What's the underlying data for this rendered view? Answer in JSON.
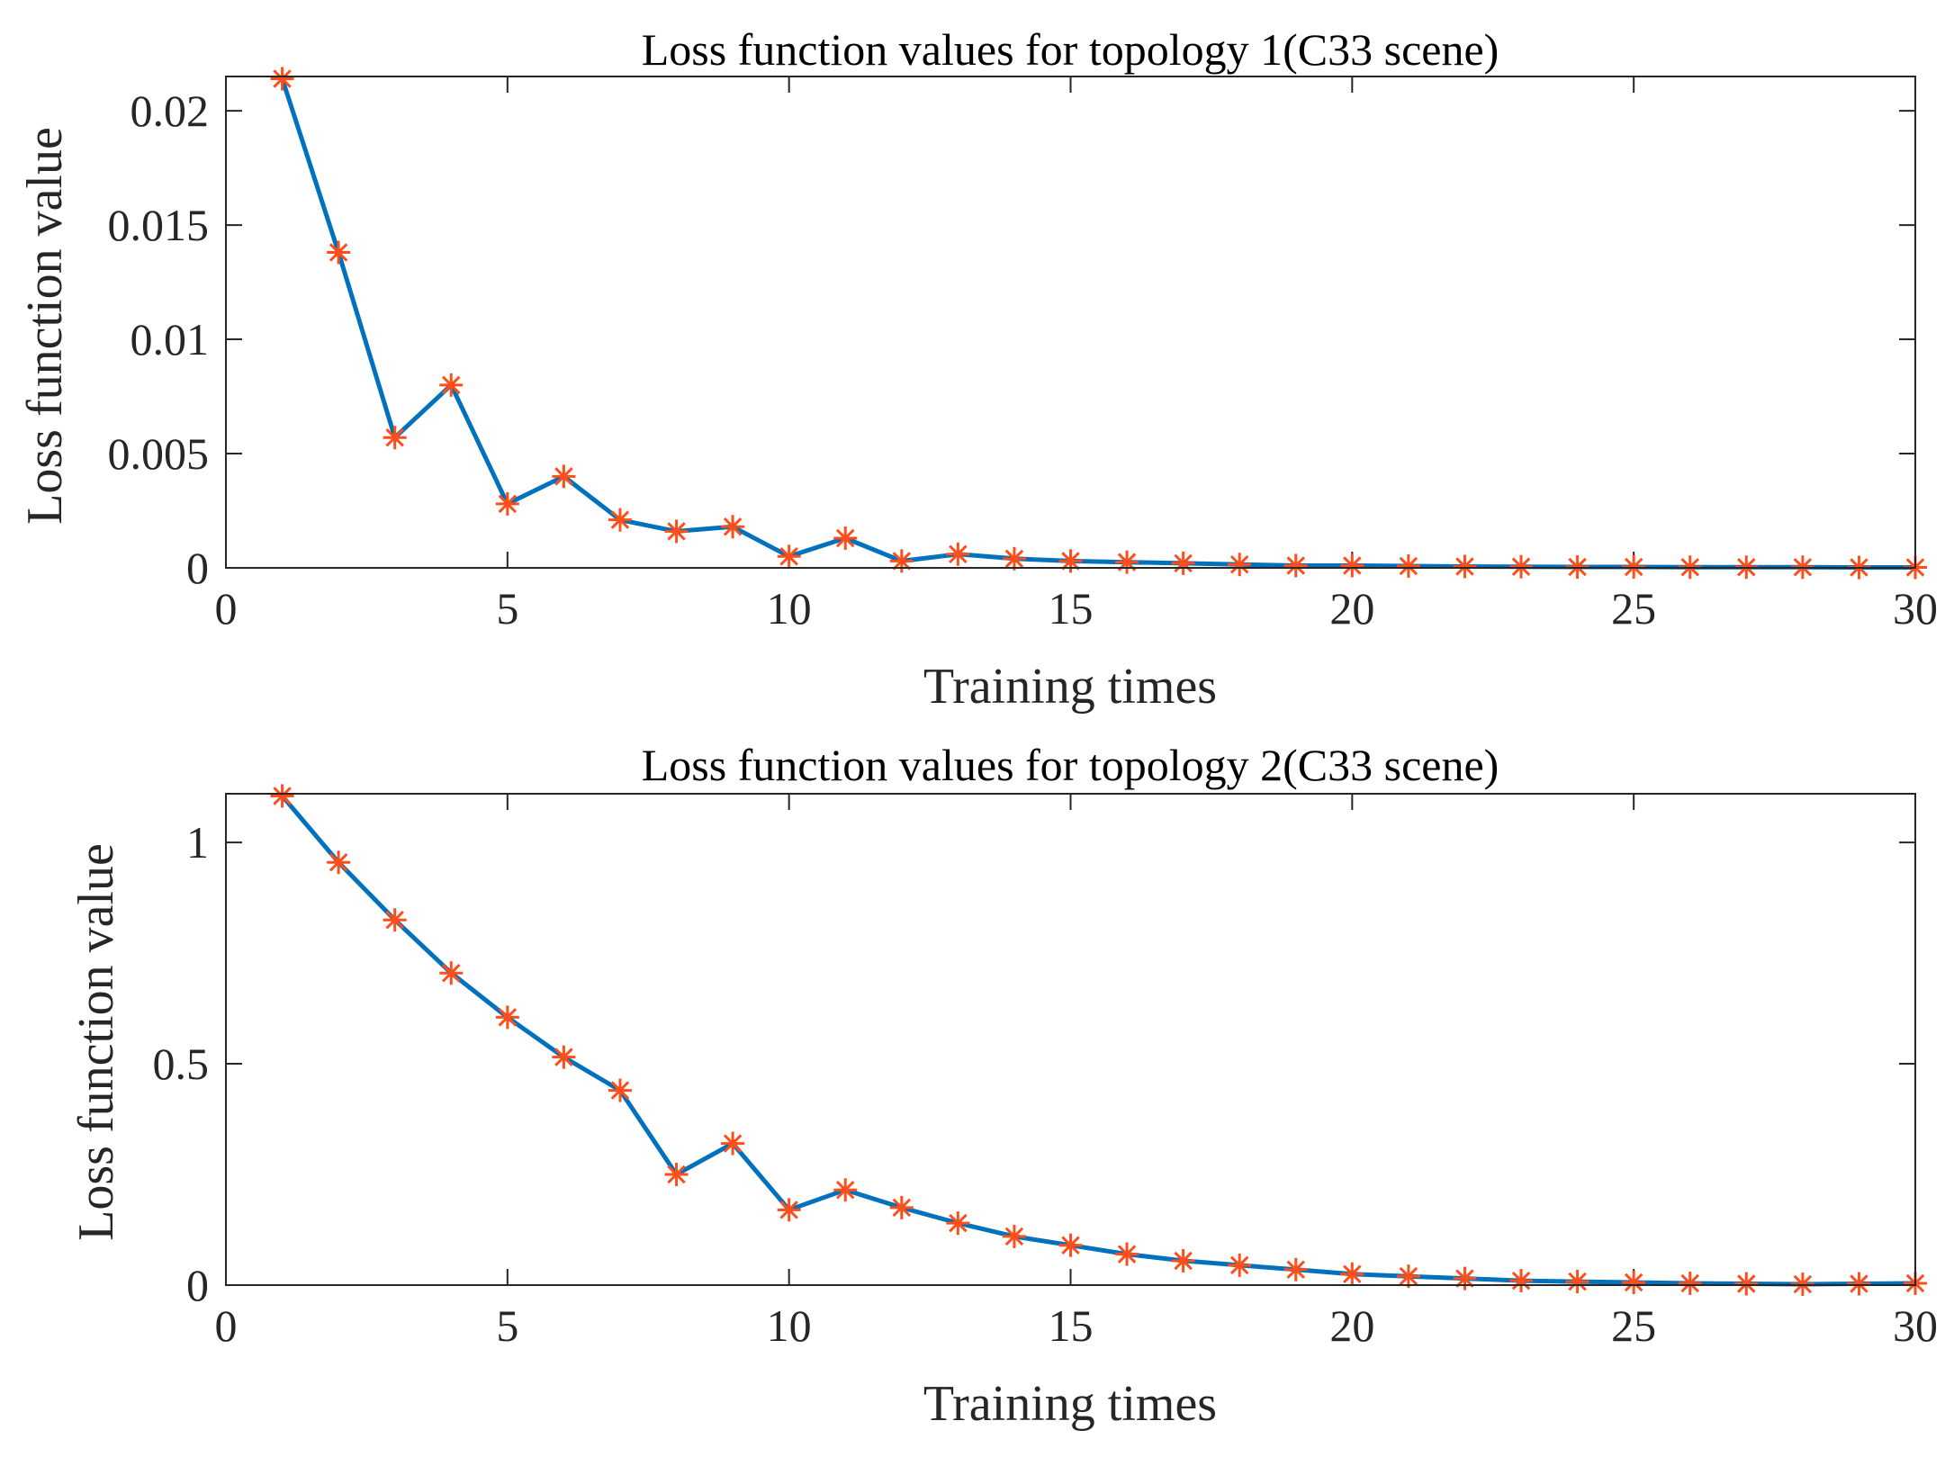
{
  "chart_data": [
    {
      "type": "line",
      "title": "Loss function values for topology 1(C33 scene)",
      "xlabel": "Training times",
      "ylabel": "Loss function value",
      "xlim": [
        0,
        30
      ],
      "ylim": [
        0,
        0.0215
      ],
      "xticks": [
        0,
        5,
        10,
        15,
        20,
        25,
        30
      ],
      "xtick_labels": [
        "0",
        "5",
        "10",
        "15",
        "20",
        "25",
        "30"
      ],
      "yticks": [
        0,
        0.005,
        0.01,
        0.015,
        0.02
      ],
      "ytick_labels": [
        "0",
        "0.005",
        "0.01",
        "0.015",
        "0.02"
      ],
      "grid": false,
      "line_color": "#0072BD",
      "marker_color": "#FF4E1A",
      "marker": "asterisk",
      "x": [
        1,
        2,
        3,
        4,
        5,
        6,
        7,
        8,
        9,
        10,
        11,
        12,
        13,
        14,
        15,
        16,
        17,
        18,
        19,
        20,
        21,
        22,
        23,
        24,
        25,
        26,
        27,
        28,
        29,
        30
      ],
      "values": [
        0.0214,
        0.0138,
        0.0057,
        0.008,
        0.0028,
        0.004,
        0.0021,
        0.0016,
        0.0018,
        0.0005,
        0.0013,
        0.0003,
        0.0006,
        0.0004,
        0.0003,
        0.00025,
        0.0002,
        0.00015,
        0.0001,
        0.0001,
        8e-05,
        6e-05,
        5e-05,
        4e-05,
        4e-05,
        3e-05,
        3e-05,
        3e-05,
        2e-05,
        2e-05
      ]
    },
    {
      "type": "line",
      "title": "Loss function values for topology 2(C33 scene)",
      "xlabel": "Training times",
      "ylabel": "Loss function value",
      "xlim": [
        0,
        30
      ],
      "ylim": [
        0,
        1.11
      ],
      "xticks": [
        0,
        5,
        10,
        15,
        20,
        25,
        30
      ],
      "xtick_labels": [
        "0",
        "5",
        "10",
        "15",
        "20",
        "25",
        "30"
      ],
      "yticks": [
        0,
        0.5,
        1
      ],
      "ytick_labels": [
        "0",
        "0.5",
        "1"
      ],
      "grid": false,
      "line_color": "#0072BD",
      "marker_color": "#FF4E1A",
      "marker": "asterisk",
      "x": [
        1,
        2,
        3,
        4,
        5,
        6,
        7,
        8,
        9,
        10,
        11,
        12,
        13,
        14,
        15,
        16,
        17,
        18,
        19,
        20,
        21,
        22,
        23,
        24,
        25,
        26,
        27,
        28,
        29,
        30
      ],
      "values": [
        1.105,
        0.955,
        0.825,
        0.705,
        0.605,
        0.515,
        0.44,
        0.25,
        0.32,
        0.17,
        0.215,
        0.175,
        0.14,
        0.11,
        0.09,
        0.07,
        0.055,
        0.045,
        0.035,
        0.025,
        0.02,
        0.015,
        0.01,
        0.008,
        0.006,
        0.004,
        0.003,
        0.002,
        0.003,
        0.004
      ]
    }
  ]
}
